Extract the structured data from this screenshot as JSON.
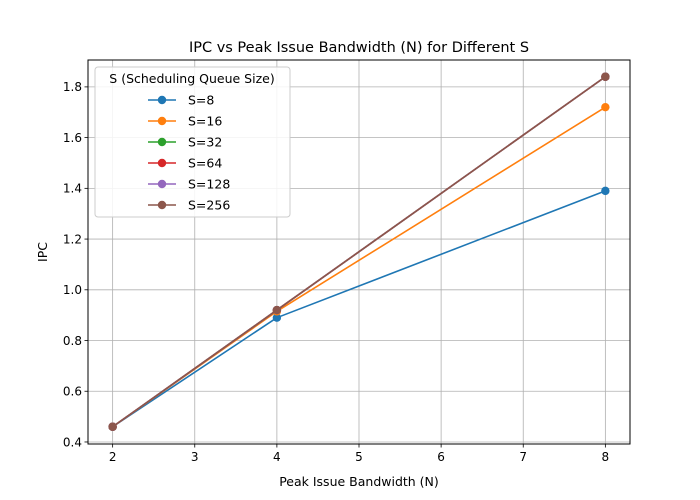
{
  "chart_data": {
    "type": "line",
    "title": "IPC vs Peak Issue Bandwidth (N) for Different S",
    "xlabel": "Peak Issue Bandwidth (N)",
    "ylabel": "IPC",
    "x": [
      2,
      4,
      8
    ],
    "xlim": [
      1.7,
      8.3
    ],
    "ylim": [
      0.392,
      1.906
    ],
    "xticks": [
      2,
      3,
      4,
      5,
      6,
      7,
      8
    ],
    "yticks": [
      0.4,
      0.6,
      0.8,
      1.0,
      1.2,
      1.4,
      1.6,
      1.8
    ],
    "grid": true,
    "legend": {
      "title": "S (Scheduling Queue Size)",
      "placement": "top-left"
    },
    "series": [
      {
        "name": "S=8",
        "color": "#1f77b4",
        "values": [
          0.46,
          0.89,
          1.39
        ]
      },
      {
        "name": "S=16",
        "color": "#ff7f0e",
        "values": [
          0.46,
          0.915,
          1.72
        ]
      },
      {
        "name": "S=32",
        "color": "#2ca02c",
        "values": [
          0.46,
          0.92,
          1.84
        ]
      },
      {
        "name": "S=64",
        "color": "#d62728",
        "values": [
          0.46,
          0.92,
          1.84
        ]
      },
      {
        "name": "S=128",
        "color": "#9467bd",
        "values": [
          0.46,
          0.92,
          1.84
        ]
      },
      {
        "name": "S=256",
        "color": "#8c564b",
        "values": [
          0.46,
          0.92,
          1.84
        ]
      }
    ]
  }
}
